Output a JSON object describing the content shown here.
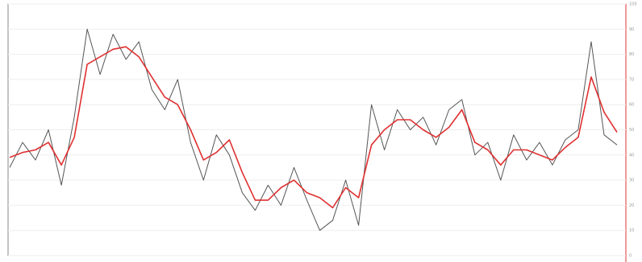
{
  "chart_data": {
    "type": "line",
    "ylim": [
      0,
      100
    ],
    "yticks": [
      0,
      10,
      20,
      30,
      40,
      50,
      60,
      70,
      80,
      90,
      100
    ],
    "grid": true,
    "series": [
      {
        "color": "#555555",
        "values": [
          35,
          45,
          38,
          50,
          28,
          55,
          90,
          72,
          88,
          78,
          85,
          66,
          58,
          70,
          45,
          30,
          48,
          40,
          25,
          18,
          28,
          20,
          35,
          22,
          10,
          14,
          30,
          12,
          60,
          42,
          58,
          50,
          55,
          44,
          58,
          62,
          40,
          45,
          30,
          48,
          38,
          45,
          36,
          46,
          50,
          85,
          48,
          44
        ]
      },
      {
        "color": "#e03030",
        "values": [
          39,
          41,
          42,
          45,
          36,
          47,
          76,
          79,
          82,
          83,
          79,
          71,
          63,
          60,
          50,
          38,
          41,
          46,
          33,
          22,
          22,
          27,
          30,
          25,
          23,
          19,
          27,
          23,
          44,
          50,
          54,
          54,
          50,
          47,
          51,
          58,
          45,
          42,
          36,
          42,
          42,
          40,
          38,
          43,
          47,
          71,
          57,
          49
        ]
      }
    ]
  }
}
